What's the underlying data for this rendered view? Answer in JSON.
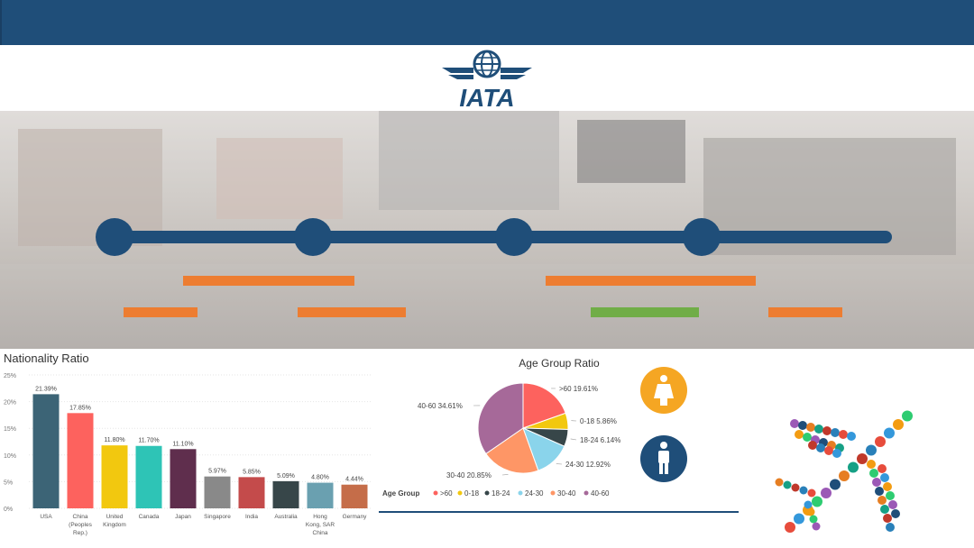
{
  "header": {
    "color": "#1f4e79"
  },
  "logo": {
    "text": "IATA",
    "color": "#1f4e79"
  },
  "timeline": {
    "line_color": "#1f4e79",
    "accent_orange": "#ed7d31",
    "accent_green": "#70ad47",
    "node_count": 4
  },
  "nationality_chart": {
    "chart_data": {
      "type": "bar",
      "title": "Nationality Ratio",
      "categories": [
        "USA",
        "China (Peoples Rep.)",
        "United Kingdom",
        "Canada",
        "Japan",
        "Singapore",
        "India",
        "Australia",
        "Hong Kong, SAR China",
        "Germany"
      ],
      "category_lines": [
        [
          "USA"
        ],
        [
          "China",
          "(Peoples",
          "Rep.)"
        ],
        [
          "United",
          "Kingdom"
        ],
        [
          "Canada"
        ],
        [
          "Japan"
        ],
        [
          "Singapore"
        ],
        [
          "India"
        ],
        [
          "Australia"
        ],
        [
          "Hong",
          "Kong, SAR",
          "China"
        ],
        [
          "Germany"
        ]
      ],
      "values": [
        21.39,
        17.85,
        11.8,
        11.7,
        11.1,
        5.97,
        5.85,
        5.09,
        4.8,
        4.44
      ],
      "labels": [
        "21.39%",
        "17.85%",
        "11.80%",
        "11.70%",
        "11.10%",
        "5.97%",
        "5.85%",
        "5.09%",
        "4.80%",
        "4.44%"
      ],
      "colors": [
        "#3c6476",
        "#fd625e",
        "#f2c80f",
        "#2ec4b6",
        "#5f2e4d",
        "#898989",
        "#c44b4b",
        "#374649",
        "#6aa0b0",
        "#c56d49"
      ],
      "ylim": [
        0,
        25
      ],
      "yticks": [
        "0%",
        "5%",
        "10%",
        "15%",
        "20%",
        "25%"
      ],
      "grid": true
    }
  },
  "age_chart": {
    "chart_data": {
      "type": "pie",
      "title": "Age Group Ratio",
      "legend_title": "Age Group",
      "legend_position": "bottom",
      "slices": [
        {
          "name": ">60",
          "value": 19.61,
          "label": ">60 19.61%",
          "color": "#fd625e"
        },
        {
          "name": "0-18",
          "value": 5.86,
          "label": "0-18 5.86%",
          "color": "#f2c80f"
        },
        {
          "name": "18-24",
          "value": 6.14,
          "label": "18-24 6.14%",
          "color": "#374649"
        },
        {
          "name": "24-30",
          "value": 12.92,
          "label": "24-30 12.92%",
          "color": "#8ad4eb"
        },
        {
          "name": "30-40",
          "value": 20.85,
          "label": "30-40 20.85%",
          "color": "#fe9666"
        },
        {
          "name": "40-60",
          "value": 34.61,
          "label": "40-60 34.61%",
          "color": "#a66999"
        }
      ]
    }
  },
  "gender_icons": {
    "female": "female-icon",
    "male": "male-icon",
    "female_color": "#f5a623",
    "male_color": "#1f4e79"
  },
  "plane_graphic": {
    "icon": "airplane-collage-icon"
  }
}
